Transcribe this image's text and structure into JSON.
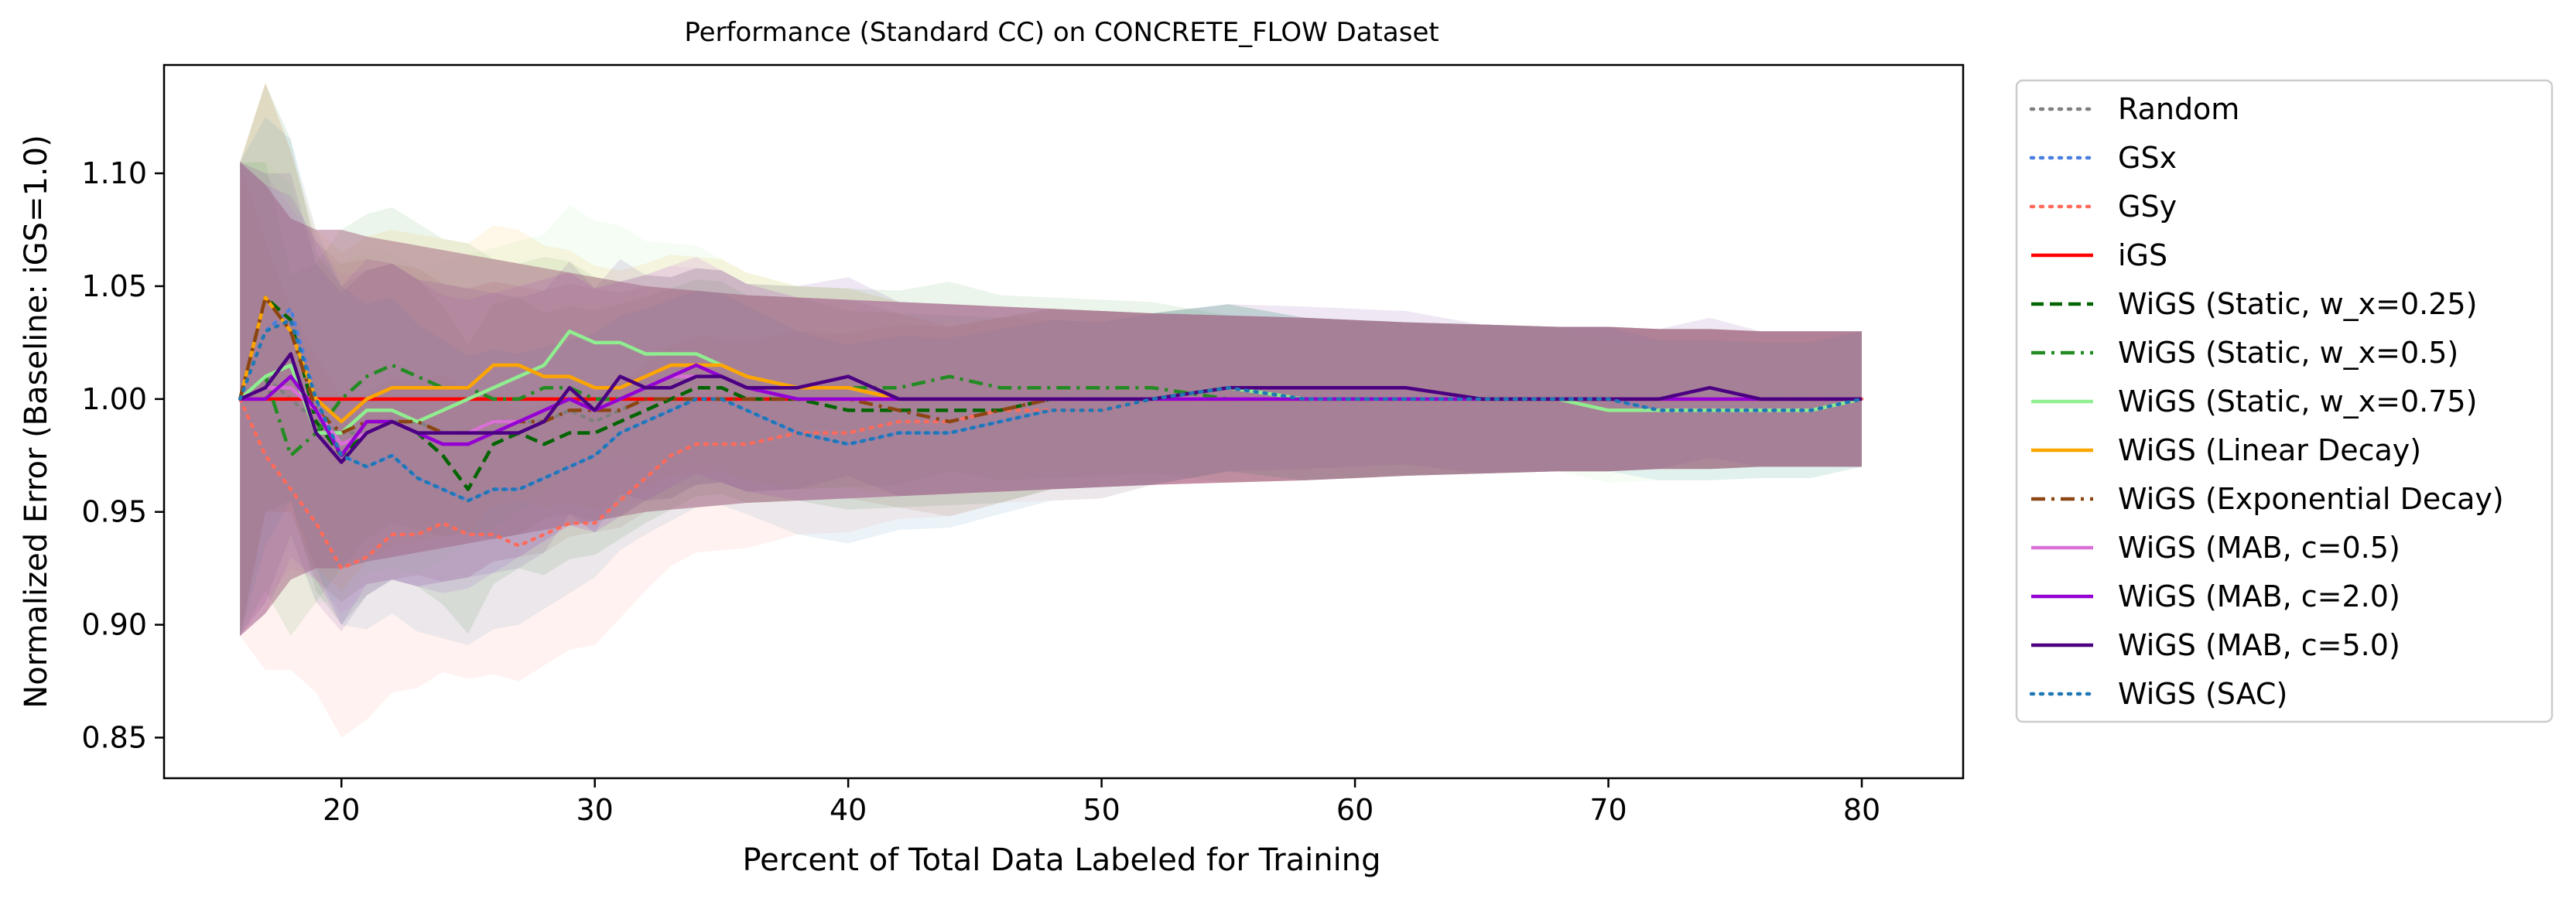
{
  "chart_data": {
    "type": "line",
    "title": "Performance (Standard CC) on CONCRETE_FLOW Dataset",
    "xlabel": "Percent of Total Data Labeled for Training",
    "ylabel": "Normalized Error (Baseline: iGS=1.0)",
    "xlim": [
      13,
      84
    ],
    "ylim": [
      0.832,
      1.148
    ],
    "xticks": [
      20,
      30,
      40,
      50,
      60,
      70,
      80
    ],
    "yticks": [
      0.85,
      0.9,
      0.95,
      1.0,
      1.05,
      1.1
    ],
    "ytick_labels": [
      "0.85",
      "0.90",
      "0.95",
      "1.00",
      "1.05",
      "1.10"
    ],
    "grid": false,
    "legend_position": "outside right",
    "x": [
      16,
      17,
      18,
      19,
      20,
      21,
      22,
      23,
      24,
      25,
      26,
      27,
      28,
      29,
      30,
      31,
      32,
      33,
      34,
      35,
      36,
      38,
      40,
      42,
      44,
      46,
      48,
      50,
      52,
      55,
      58,
      60,
      62,
      65,
      68,
      70,
      72,
      74,
      76,
      78,
      80
    ],
    "series": [
      {
        "name": "Random",
        "color": "#7f7f7f",
        "dash": "dotted",
        "band": false,
        "values": [
          1.0,
          1.01,
          1.0,
          0.99,
          0.985,
          0.985,
          0.99,
          0.99,
          0.985,
          0.985,
          0.99,
          0.99,
          0.99,
          0.995,
          0.99,
          0.995,
          1.0,
          1.0,
          1.0,
          1.0,
          1.0,
          1.0,
          1.0,
          1.0,
          1.0,
          1.0,
          1.0,
          1.0,
          1.0,
          1.0,
          1.0,
          1.0,
          1.0,
          1.0,
          1.0,
          1.0,
          1.0,
          1.0,
          1.0,
          1.0,
          1.0
        ]
      },
      {
        "name": "GSx",
        "color": "#4a7fe0",
        "dash": "dotted",
        "band": false,
        "values": [
          1.0,
          1.03,
          1.04,
          1.0,
          0.975,
          0.97,
          0.975,
          0.965,
          0.96,
          0.955,
          0.96,
          0.96,
          0.965,
          0.97,
          0.975,
          0.985,
          0.99,
          0.995,
          1.0,
          1.0,
          0.995,
          0.985,
          0.98,
          0.985,
          0.985,
          0.99,
          0.995,
          0.995,
          1.0,
          1.005,
          1.0,
          1.0,
          1.0,
          1.0,
          1.0,
          1.0,
          0.995,
          0.995,
          0.995,
          0.995,
          1.0
        ]
      },
      {
        "name": "GSy",
        "color": "#ff6a5a",
        "dash": "dotted",
        "band": true,
        "values": [
          1.0,
          0.975,
          0.96,
          0.945,
          0.925,
          0.93,
          0.94,
          0.94,
          0.945,
          0.94,
          0.94,
          0.935,
          0.94,
          0.945,
          0.945,
          0.955,
          0.965,
          0.975,
          0.98,
          0.98,
          0.98,
          0.985,
          0.985,
          0.99,
          0.99,
          0.995,
          0.995,
          0.995,
          1.0,
          1.0,
          1.0,
          1.0,
          1.0,
          1.0,
          1.0,
          1.0,
          1.0,
          1.0,
          1.0,
          1.0,
          1.0
        ]
      },
      {
        "name": "iGS",
        "color": "#ff0000",
        "dash": "solid",
        "band": true,
        "values": [
          1.0,
          1.0,
          1.0,
          1.0,
          1.0,
          1.0,
          1.0,
          1.0,
          1.0,
          1.0,
          1.0,
          1.0,
          1.0,
          1.0,
          1.0,
          1.0,
          1.0,
          1.0,
          1.0,
          1.0,
          1.0,
          1.0,
          1.0,
          1.0,
          1.0,
          1.0,
          1.0,
          1.0,
          1.0,
          1.0,
          1.0,
          1.0,
          1.0,
          1.0,
          1.0,
          1.0,
          1.0,
          1.0,
          1.0,
          1.0,
          1.0
        ]
      },
      {
        "name": "WiGS (Static, w_x=0.25)",
        "color": "#006400",
        "dash": "dashed",
        "band": true,
        "values": [
          1.0,
          1.045,
          1.035,
          0.99,
          0.975,
          0.985,
          0.99,
          0.985,
          0.975,
          0.96,
          0.98,
          0.985,
          0.98,
          0.985,
          0.985,
          0.99,
          0.995,
          1.0,
          1.005,
          1.005,
          1.0,
          1.0,
          0.995,
          0.995,
          0.995,
          0.995,
          1.0,
          1.0,
          1.0,
          1.005,
          1.0,
          1.0,
          1.0,
          1.0,
          1.0,
          1.0,
          1.0,
          1.0,
          1.0,
          1.0,
          1.0
        ]
      },
      {
        "name": "WiGS (Static, w_x=0.5)",
        "color": "#228b22",
        "dash": "dashdot",
        "band": true,
        "values": [
          1.0,
          1.01,
          0.975,
          0.985,
          1.0,
          1.01,
          1.015,
          1.01,
          1.005,
          1.005,
          1.0,
          1.0,
          1.005,
          1.005,
          1.0,
          1.0,
          1.005,
          1.005,
          1.01,
          1.01,
          1.005,
          1.005,
          1.005,
          1.005,
          1.01,
          1.005,
          1.005,
          1.005,
          1.005,
          1.0,
          1.0,
          1.0,
          1.0,
          1.0,
          1.0,
          1.0,
          1.0,
          1.0,
          1.0,
          1.0,
          1.0
        ]
      },
      {
        "name": "WiGS (Static, w_x=0.75)",
        "color": "#90ee90",
        "dash": "solid",
        "band": true,
        "values": [
          1.0,
          1.01,
          1.015,
          0.985,
          0.985,
          0.995,
          0.995,
          0.99,
          0.995,
          1.0,
          1.005,
          1.01,
          1.015,
          1.03,
          1.025,
          1.025,
          1.02,
          1.02,
          1.02,
          1.015,
          1.01,
          1.005,
          1.005,
          1.0,
          1.0,
          1.0,
          1.0,
          1.0,
          1.0,
          1.005,
          1.0,
          1.0,
          1.0,
          1.0,
          1.0,
          0.995,
          0.995,
          0.995,
          0.995,
          0.995,
          1.0
        ]
      },
      {
        "name": "WiGS (Linear Decay)",
        "color": "#ffa500",
        "dash": "solid",
        "band": true,
        "values": [
          1.0,
          1.045,
          1.03,
          1.0,
          0.99,
          1.0,
          1.005,
          1.005,
          1.005,
          1.005,
          1.015,
          1.015,
          1.01,
          1.01,
          1.005,
          1.005,
          1.01,
          1.015,
          1.015,
          1.015,
          1.01,
          1.005,
          1.005,
          1.0,
          1.0,
          1.0,
          1.0,
          1.0,
          1.0,
          1.0,
          1.0,
          1.0,
          1.0,
          1.0,
          1.0,
          1.0,
          1.0,
          1.0,
          1.0,
          1.0,
          1.0
        ]
      },
      {
        "name": "WiGS (Exponential Decay)",
        "color": "#8b4513",
        "dash": "dashdot",
        "band": true,
        "values": [
          1.0,
          1.045,
          1.03,
          0.995,
          0.985,
          0.99,
          0.99,
          0.99,
          0.985,
          0.985,
          0.99,
          0.99,
          0.99,
          0.995,
          0.995,
          0.995,
          1.0,
          1.0,
          1.0,
          1.0,
          1.0,
          1.0,
          1.0,
          0.995,
          0.99,
          0.995,
          1.0,
          1.0,
          1.0,
          1.0,
          1.0,
          1.0,
          1.0,
          1.0,
          1.0,
          1.0,
          1.0,
          1.0,
          1.0,
          1.0,
          1.0
        ]
      },
      {
        "name": "WiGS (MAB, c=0.5)",
        "color": "#da70d6",
        "dash": "solid",
        "band": true,
        "values": [
          1.0,
          1.005,
          1.005,
          0.995,
          0.98,
          0.985,
          0.99,
          0.985,
          0.985,
          0.985,
          0.99,
          0.99,
          0.995,
          1.0,
          0.995,
          1.0,
          1.005,
          1.01,
          1.01,
          1.01,
          1.005,
          1.0,
          1.0,
          1.0,
          1.0,
          1.0,
          1.0,
          1.0,
          1.0,
          1.0,
          1.0,
          1.0,
          1.0,
          1.0,
          1.0,
          1.0,
          1.0,
          1.0,
          1.0,
          1.0,
          1.0
        ]
      },
      {
        "name": "WiGS (MAB, c=2.0)",
        "color": "#9400d3",
        "dash": "solid",
        "band": true,
        "values": [
          1.0,
          1.0,
          1.01,
          0.995,
          0.975,
          0.99,
          0.99,
          0.985,
          0.98,
          0.98,
          0.985,
          0.99,
          0.995,
          1.0,
          0.995,
          1.0,
          1.005,
          1.01,
          1.015,
          1.01,
          1.005,
          1.0,
          1.0,
          1.0,
          1.0,
          1.0,
          1.0,
          1.0,
          1.0,
          1.0,
          1.0,
          1.0,
          1.0,
          1.0,
          1.0,
          1.0,
          1.0,
          1.0,
          1.0,
          1.0,
          1.0
        ]
      },
      {
        "name": "WiGS (MAB, c=5.0)",
        "color": "#4b0082",
        "dash": "solid",
        "band": true,
        "values": [
          1.0,
          1.005,
          1.02,
          0.985,
          0.972,
          0.985,
          0.99,
          0.985,
          0.985,
          0.985,
          0.985,
          0.985,
          0.99,
          1.005,
          0.995,
          1.01,
          1.005,
          1.005,
          1.01,
          1.01,
          1.005,
          1.005,
          1.01,
          1.0,
          1.0,
          1.0,
          1.0,
          1.0,
          1.0,
          1.005,
          1.005,
          1.005,
          1.005,
          1.0,
          1.0,
          1.0,
          1.0,
          1.005,
          1.0,
          1.0,
          1.0
        ]
      },
      {
        "name": "WiGS (SAC)",
        "color": "#1f77b4",
        "dash": "dotted",
        "band": true,
        "values": [
          1.0,
          1.03,
          1.035,
          1.0,
          0.975,
          0.97,
          0.975,
          0.965,
          0.96,
          0.955,
          0.96,
          0.96,
          0.965,
          0.97,
          0.975,
          0.985,
          0.99,
          0.995,
          1.0,
          1.0,
          0.995,
          0.985,
          0.98,
          0.985,
          0.985,
          0.99,
          0.995,
          0.995,
          1.0,
          1.005,
          1.0,
          1.0,
          1.0,
          1.0,
          1.0,
          1.0,
          0.995,
          0.995,
          0.995,
          0.995,
          1.0
        ]
      }
    ],
    "band_halfwidth": [
      0.105,
      0.095,
      0.08,
      0.075,
      0.075,
      0.072,
      0.07,
      0.068,
      0.066,
      0.064,
      0.062,
      0.06,
      0.058,
      0.056,
      0.054,
      0.052,
      0.05,
      0.049,
      0.048,
      0.047,
      0.046,
      0.045,
      0.044,
      0.043,
      0.042,
      0.041,
      0.04,
      0.039,
      0.038,
      0.037,
      0.036,
      0.035,
      0.034,
      0.033,
      0.032,
      0.032,
      0.031,
      0.031,
      0.03,
      0.03,
      0.03
    ],
    "band_color": "#9b6b8e"
  }
}
